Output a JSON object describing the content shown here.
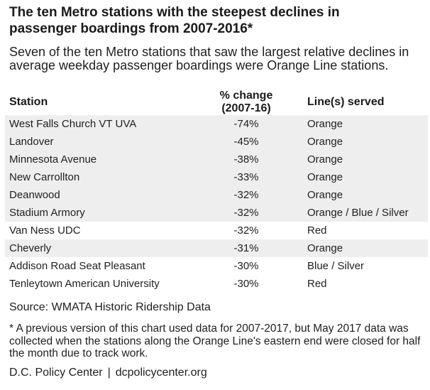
{
  "title": "The ten Metro stations with the steepest declines in passenger boardings from 2007-2016*",
  "subtitle": "Seven of the ten Metro stations that saw the largest relative declines in average weekday passenger boardings were Orange Line stations.",
  "table": {
    "headers": {
      "station": "Station",
      "change_line1": "% change",
      "change_line2": "(2007-16)",
      "line": "Line(s) served"
    },
    "rows": [
      {
        "station": "West Falls Church VT UVA",
        "change": "-74%",
        "line": "Orange"
      },
      {
        "station": "Landover",
        "change": "-45%",
        "line": "Orange"
      },
      {
        "station": "Minnesota Avenue",
        "change": "-38%",
        "line": "Orange"
      },
      {
        "station": "New Carrollton",
        "change": "-33%",
        "line": "Orange"
      },
      {
        "station": "Deanwood",
        "change": "-32%",
        "line": "Orange"
      },
      {
        "station": "Stadium Armory",
        "change": "-32%",
        "line": "Orange / Blue / Silver"
      },
      {
        "station": "Van Ness UDC",
        "change": "-32%",
        "line": "Red"
      },
      {
        "station": "Cheverly",
        "change": "-31%",
        "line": "Orange"
      },
      {
        "station": "Addison Road Seat Pleasant",
        "change": "-30%",
        "line": "Blue / Silver"
      },
      {
        "station": "Tenleytown American University",
        "change": "-30%",
        "line": "Red"
      }
    ]
  },
  "source": "Source: WMATA Historic Ridership Data",
  "footnote": "* A previous version of this chart used data for 2007-2017, but May 2017 data was collected when the stations along the Orange Line's eastern end were closed for half the month due to track work.",
  "credit": {
    "org": "D.C. Policy Center",
    "separator": "|",
    "site": "dcpolicycenter.org"
  },
  "colors": {
    "shaded_row": "#eeeeee",
    "text": "#1f1f1f"
  }
}
